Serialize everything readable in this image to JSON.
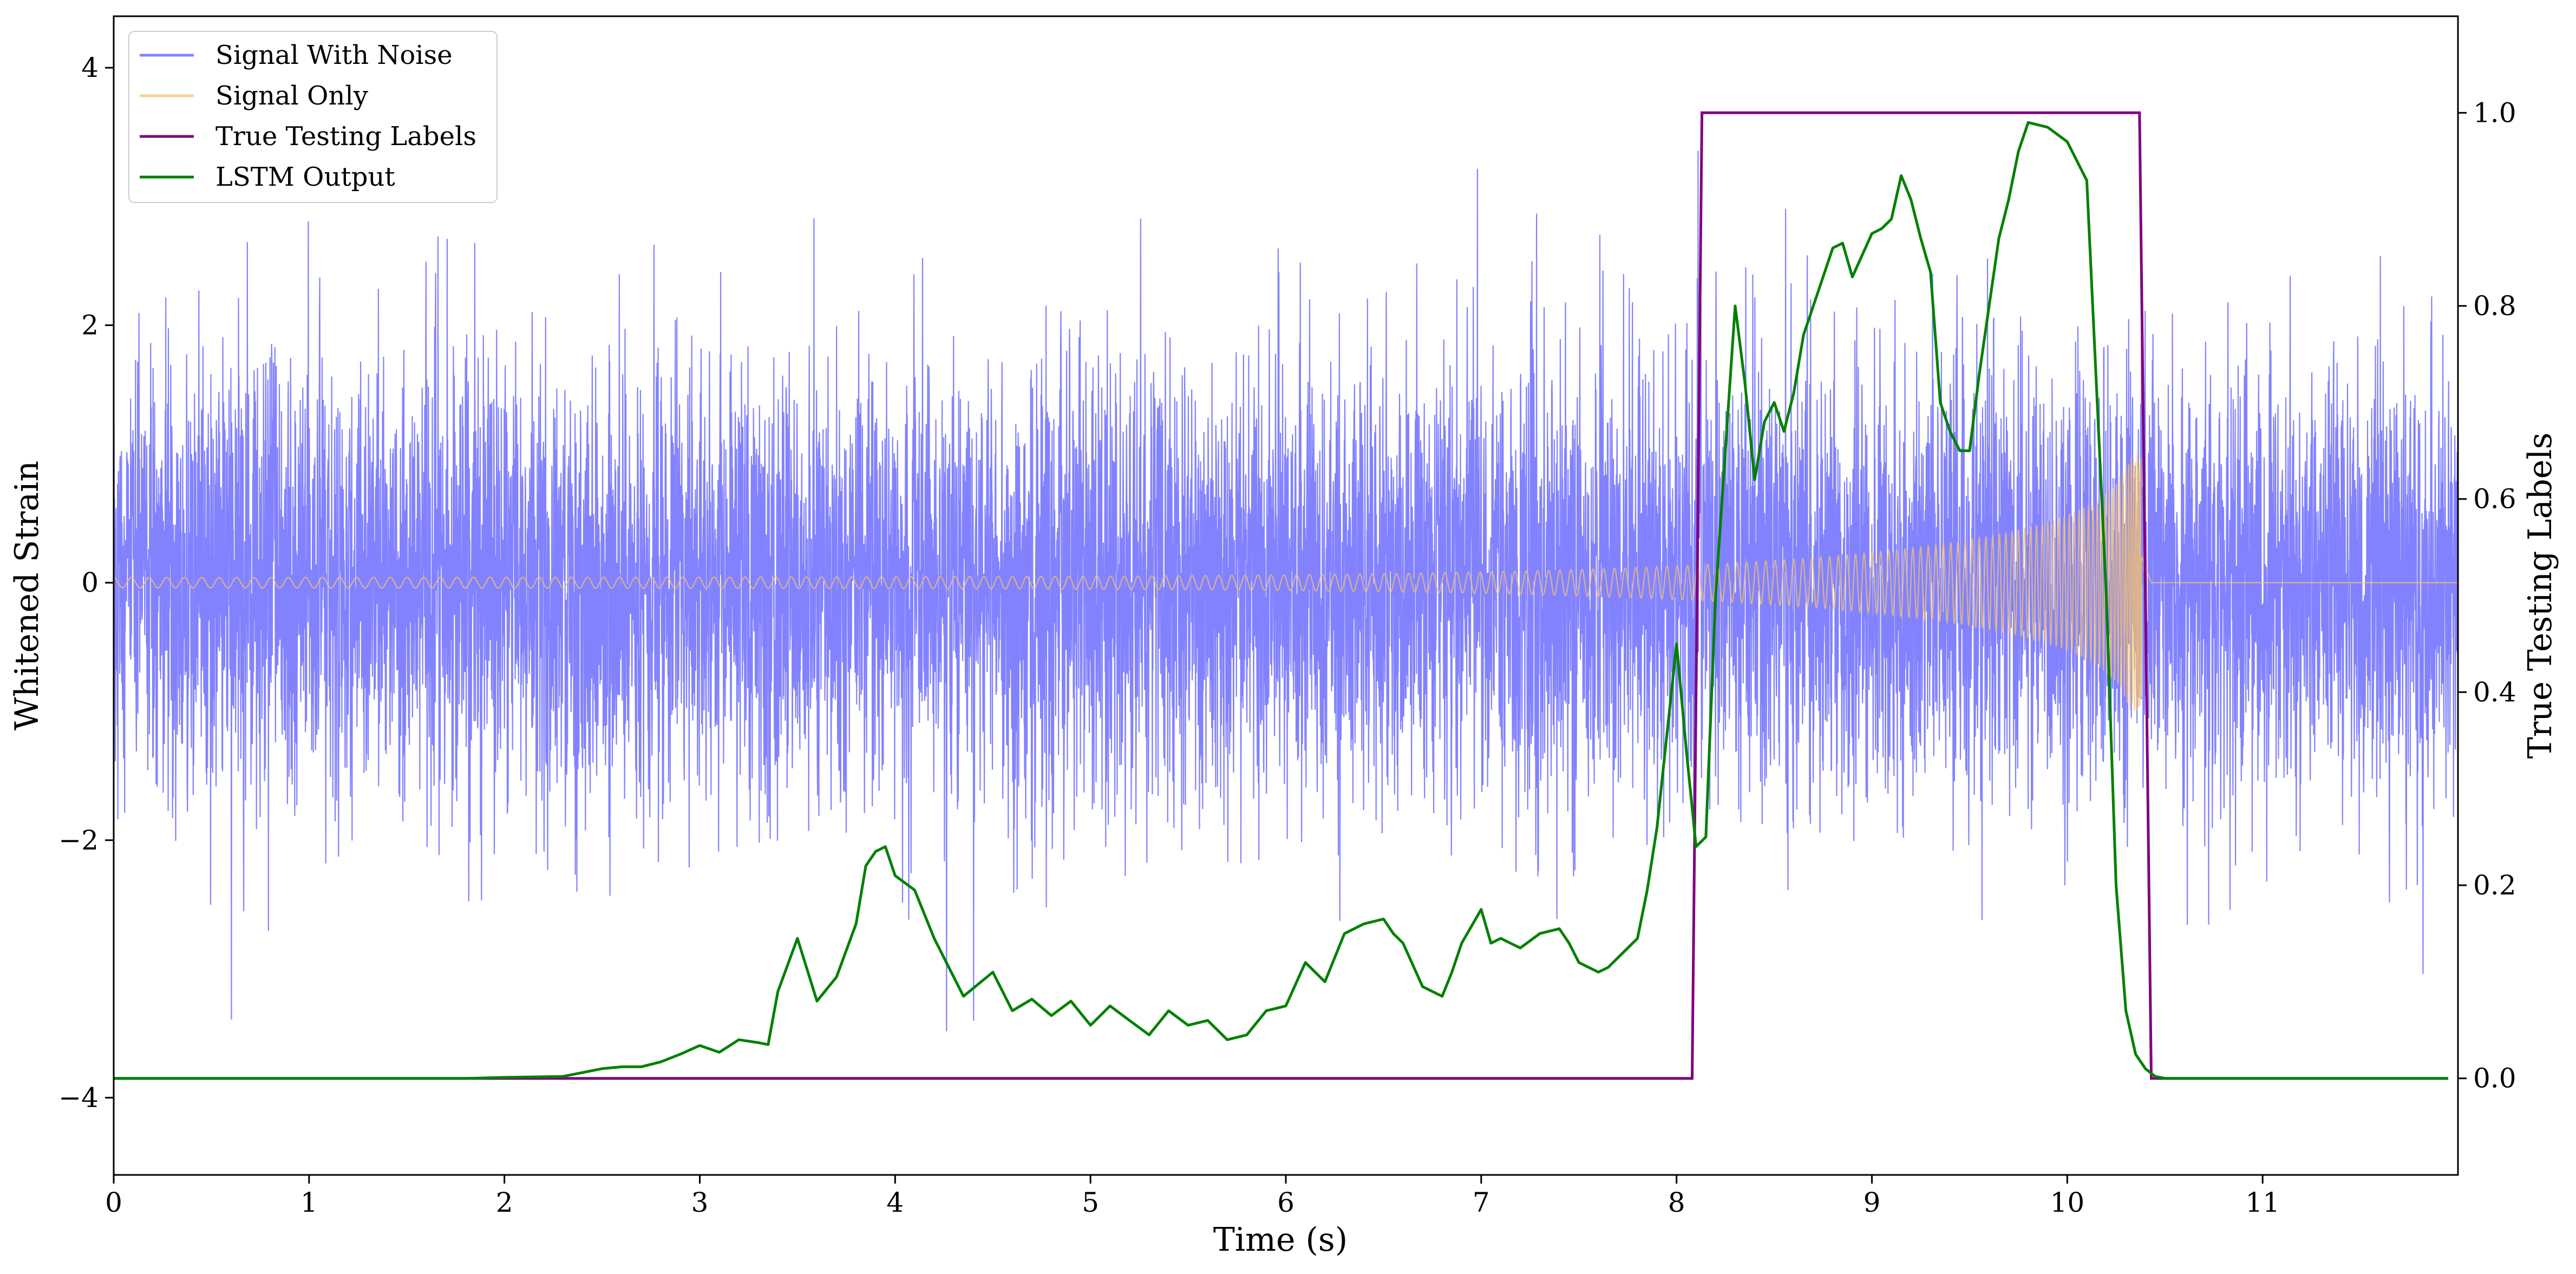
{
  "chart_data": {
    "type": "line",
    "xlabel": "Time (s)",
    "ylabel_left": "Whitened Strain",
    "ylabel_right": "True Testing Labels",
    "xlim": [
      0,
      12
    ],
    "ylim_left": [
      -4.6,
      4.4
    ],
    "ylim_right": [
      -0.1,
      1.1
    ],
    "x_ticks": [
      0,
      1,
      2,
      3,
      4,
      5,
      6,
      7,
      8,
      9,
      10,
      11
    ],
    "x_tick_labels": [
      "0",
      "1",
      "2",
      "3",
      "4",
      "5",
      "6",
      "7",
      "8",
      "9",
      "10",
      "11"
    ],
    "y_left_ticks": [
      4,
      2,
      0,
      -2,
      -4
    ],
    "y_left_tick_labels": [
      "4",
      "2",
      "0",
      "−2",
      "−4"
    ],
    "y_right_ticks": [
      1.0,
      0.8,
      0.6,
      0.4,
      0.2,
      0.0
    ],
    "y_right_tick_labels": [
      "1.0",
      "0.8",
      "0.6",
      "0.4",
      "0.2",
      "0.0"
    ],
    "grid": false,
    "legend_position": "top-left",
    "series": [
      {
        "name": "Signal With Noise",
        "axis": "left",
        "color": "#7b7bff",
        "kind": "noise",
        "sigma": 0.85,
        "max_abs": 4.0,
        "x_range": [
          0,
          12
        ]
      },
      {
        "name": "Signal Only",
        "axis": "left",
        "color": "#f5c26b",
        "kind": "chirp",
        "amplitude_start": 0.04,
        "amplitude_peak": 1.0,
        "x_merger": 10.38
      },
      {
        "name": "True Testing Labels",
        "axis": "right",
        "color": "#800080",
        "x": [
          0,
          8.08,
          8.13,
          10.37,
          10.43,
          11.95
        ],
        "y": [
          0,
          0,
          1,
          1,
          0,
          0
        ]
      },
      {
        "name": "LSTM Output",
        "axis": "right",
        "color": "#008000",
        "x": [
          0,
          1.8,
          2.0,
          2.3,
          2.5,
          2.6,
          2.7,
          2.8,
          2.9,
          3.0,
          3.1,
          3.2,
          3.3,
          3.35,
          3.4,
          3.5,
          3.6,
          3.7,
          3.8,
          3.85,
          3.9,
          3.95,
          4.0,
          4.1,
          4.2,
          4.35,
          4.5,
          4.6,
          4.7,
          4.8,
          4.9,
          5.0,
          5.1,
          5.2,
          5.3,
          5.4,
          5.5,
          5.6,
          5.7,
          5.8,
          5.9,
          6.0,
          6.1,
          6.2,
          6.3,
          6.4,
          6.5,
          6.55,
          6.6,
          6.7,
          6.8,
          6.85,
          6.9,
          7.0,
          7.05,
          7.1,
          7.2,
          7.3,
          7.4,
          7.45,
          7.5,
          7.6,
          7.65,
          7.7,
          7.8,
          7.85,
          7.9,
          8.0,
          8.05,
          8.1,
          8.15,
          8.2,
          8.3,
          8.35,
          8.4,
          8.45,
          8.5,
          8.55,
          8.6,
          8.65,
          8.7,
          8.8,
          8.85,
          8.9,
          9.0,
          9.05,
          9.1,
          9.15,
          9.2,
          9.25,
          9.3,
          9.35,
          9.4,
          9.45,
          9.5,
          9.55,
          9.6,
          9.65,
          9.7,
          9.75,
          9.8,
          9.9,
          10.0,
          10.1,
          10.2,
          10.25,
          10.3,
          10.35,
          10.4,
          10.45,
          10.5,
          10.6,
          10.7,
          10.8,
          11.0,
          11.95
        ],
        "y": [
          0,
          0,
          0.001,
          0.002,
          0.01,
          0.012,
          0.012,
          0.017,
          0.025,
          0.034,
          0.027,
          0.04,
          0.037,
          0.035,
          0.09,
          0.145,
          0.08,
          0.105,
          0.16,
          0.22,
          0.235,
          0.24,
          0.21,
          0.195,
          0.145,
          0.085,
          0.11,
          0.07,
          0.082,
          0.065,
          0.08,
          0.055,
          0.075,
          0.06,
          0.045,
          0.07,
          0.055,
          0.06,
          0.04,
          0.045,
          0.07,
          0.075,
          0.12,
          0.1,
          0.15,
          0.16,
          0.165,
          0.15,
          0.14,
          0.095,
          0.085,
          0.11,
          0.14,
          0.175,
          0.14,
          0.145,
          0.135,
          0.15,
          0.155,
          0.14,
          0.12,
          0.11,
          0.115,
          0.125,
          0.145,
          0.195,
          0.26,
          0.45,
          0.34,
          0.24,
          0.25,
          0.5,
          0.8,
          0.72,
          0.62,
          0.68,
          0.7,
          0.67,
          0.71,
          0.77,
          0.8,
          0.86,
          0.865,
          0.83,
          0.875,
          0.88,
          0.89,
          0.935,
          0.91,
          0.87,
          0.835,
          0.7,
          0.67,
          0.65,
          0.65,
          0.73,
          0.8,
          0.87,
          0.91,
          0.96,
          0.99,
          0.985,
          0.97,
          0.93,
          0.5,
          0.2,
          0.07,
          0.025,
          0.01,
          0.002,
          0.0,
          0.0,
          0.0,
          0.0,
          0.0,
          0.0
        ]
      }
    ]
  }
}
